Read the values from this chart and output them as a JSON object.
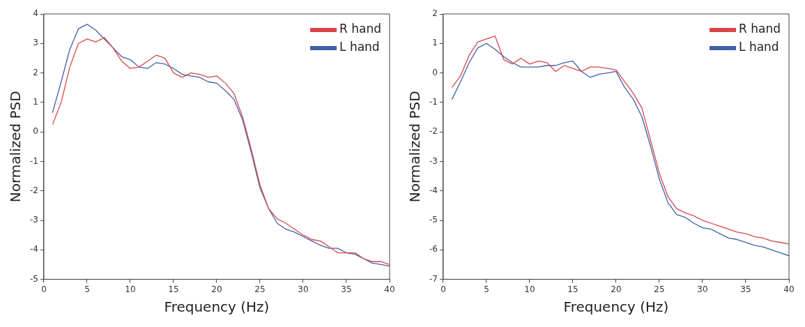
{
  "chart_data": [
    {
      "type": "line",
      "xlabel": "Frequency (Hz)",
      "ylabel": "Normalized PSD",
      "x": [
        1,
        2,
        3,
        4,
        5,
        6,
        7,
        8,
        9,
        10,
        11,
        12,
        13,
        14,
        15,
        16,
        17,
        18,
        19,
        20,
        21,
        22,
        23,
        24,
        25,
        26,
        27,
        28,
        29,
        30,
        31,
        32,
        33,
        34,
        35,
        36,
        37,
        38,
        39,
        40
      ],
      "xlim": [
        0,
        40
      ],
      "xticks": [
        0,
        5,
        10,
        15,
        20,
        25,
        30,
        35,
        40
      ],
      "ylim": [
        -5,
        4
      ],
      "yticks": [
        -5,
        -4,
        -3,
        -2,
        -1,
        0,
        1,
        2,
        3,
        4
      ],
      "grid": false,
      "legend": "top right",
      "marker": "none",
      "line_style": "solid",
      "series": [
        {
          "name": "R hand",
          "color": "#d9464a",
          "values": [
            0.25,
            1.0,
            2.2,
            3.0,
            3.15,
            3.05,
            3.2,
            2.85,
            2.4,
            2.15,
            2.2,
            2.4,
            2.6,
            2.5,
            2.0,
            1.85,
            2.0,
            1.95,
            1.85,
            1.9,
            1.65,
            1.3,
            0.5,
            -0.6,
            -1.8,
            -2.6,
            -2.95,
            -3.1,
            -3.3,
            -3.5,
            -3.65,
            -3.7,
            -3.9,
            -4.1,
            -4.1,
            -4.1,
            -4.3,
            -4.4,
            -4.4,
            -4.5
          ]
        },
        {
          "name": "L hand",
          "color": "#3f5fa8",
          "values": [
            0.65,
            1.7,
            2.8,
            3.5,
            3.65,
            3.45,
            3.15,
            2.85,
            2.55,
            2.45,
            2.2,
            2.15,
            2.35,
            2.3,
            2.15,
            1.95,
            1.9,
            1.85,
            1.7,
            1.65,
            1.4,
            1.1,
            0.4,
            -0.7,
            -1.9,
            -2.6,
            -3.1,
            -3.3,
            -3.4,
            -3.55,
            -3.7,
            -3.85,
            -3.95,
            -3.95,
            -4.1,
            -4.15,
            -4.3,
            -4.45,
            -4.5,
            -4.55
          ]
        }
      ]
    },
    {
      "type": "line",
      "xlabel": "Frequency (Hz)",
      "ylabel": "Normalized PSD",
      "x": [
        1,
        2,
        3,
        4,
        5,
        6,
        7,
        8,
        9,
        10,
        11,
        12,
        13,
        14,
        15,
        16,
        17,
        18,
        19,
        20,
        21,
        22,
        23,
        24,
        25,
        26,
        27,
        28,
        29,
        30,
        31,
        32,
        33,
        34,
        35,
        36,
        37,
        38,
        39,
        40
      ],
      "xlim": [
        0,
        40
      ],
      "xticks": [
        0,
        5,
        10,
        15,
        20,
        25,
        30,
        35,
        40
      ],
      "ylim": [
        -7,
        2
      ],
      "yticks": [
        -7,
        -6,
        -5,
        -4,
        -3,
        -2,
        -1,
        0,
        1,
        2
      ],
      "grid": false,
      "legend": "top right",
      "marker": "none",
      "line_style": "solid",
      "series": [
        {
          "name": "R hand",
          "color": "#d9464a",
          "values": [
            -0.5,
            -0.1,
            0.6,
            1.05,
            1.15,
            1.25,
            0.45,
            0.3,
            0.5,
            0.3,
            0.4,
            0.35,
            0.05,
            0.25,
            0.15,
            0.05,
            0.2,
            0.2,
            0.15,
            0.1,
            -0.3,
            -0.7,
            -1.2,
            -2.3,
            -3.4,
            -4.2,
            -4.6,
            -4.75,
            -4.85,
            -5.0,
            -5.1,
            -5.2,
            -5.3,
            -5.4,
            -5.45,
            -5.55,
            -5.6,
            -5.7,
            -5.75,
            -5.8
          ]
        },
        {
          "name": "L hand",
          "color": "#3f5fa8",
          "values": [
            -0.9,
            -0.3,
            0.35,
            0.85,
            1.0,
            0.8,
            0.55,
            0.35,
            0.2,
            0.2,
            0.2,
            0.25,
            0.25,
            0.35,
            0.4,
            0.05,
            -0.15,
            -0.05,
            0.0,
            0.05,
            -0.5,
            -0.9,
            -1.5,
            -2.5,
            -3.6,
            -4.4,
            -4.8,
            -4.9,
            -5.1,
            -5.25,
            -5.3,
            -5.45,
            -5.6,
            -5.65,
            -5.75,
            -5.85,
            -5.9,
            -6.0,
            -6.1,
            -6.2
          ]
        }
      ]
    }
  ]
}
